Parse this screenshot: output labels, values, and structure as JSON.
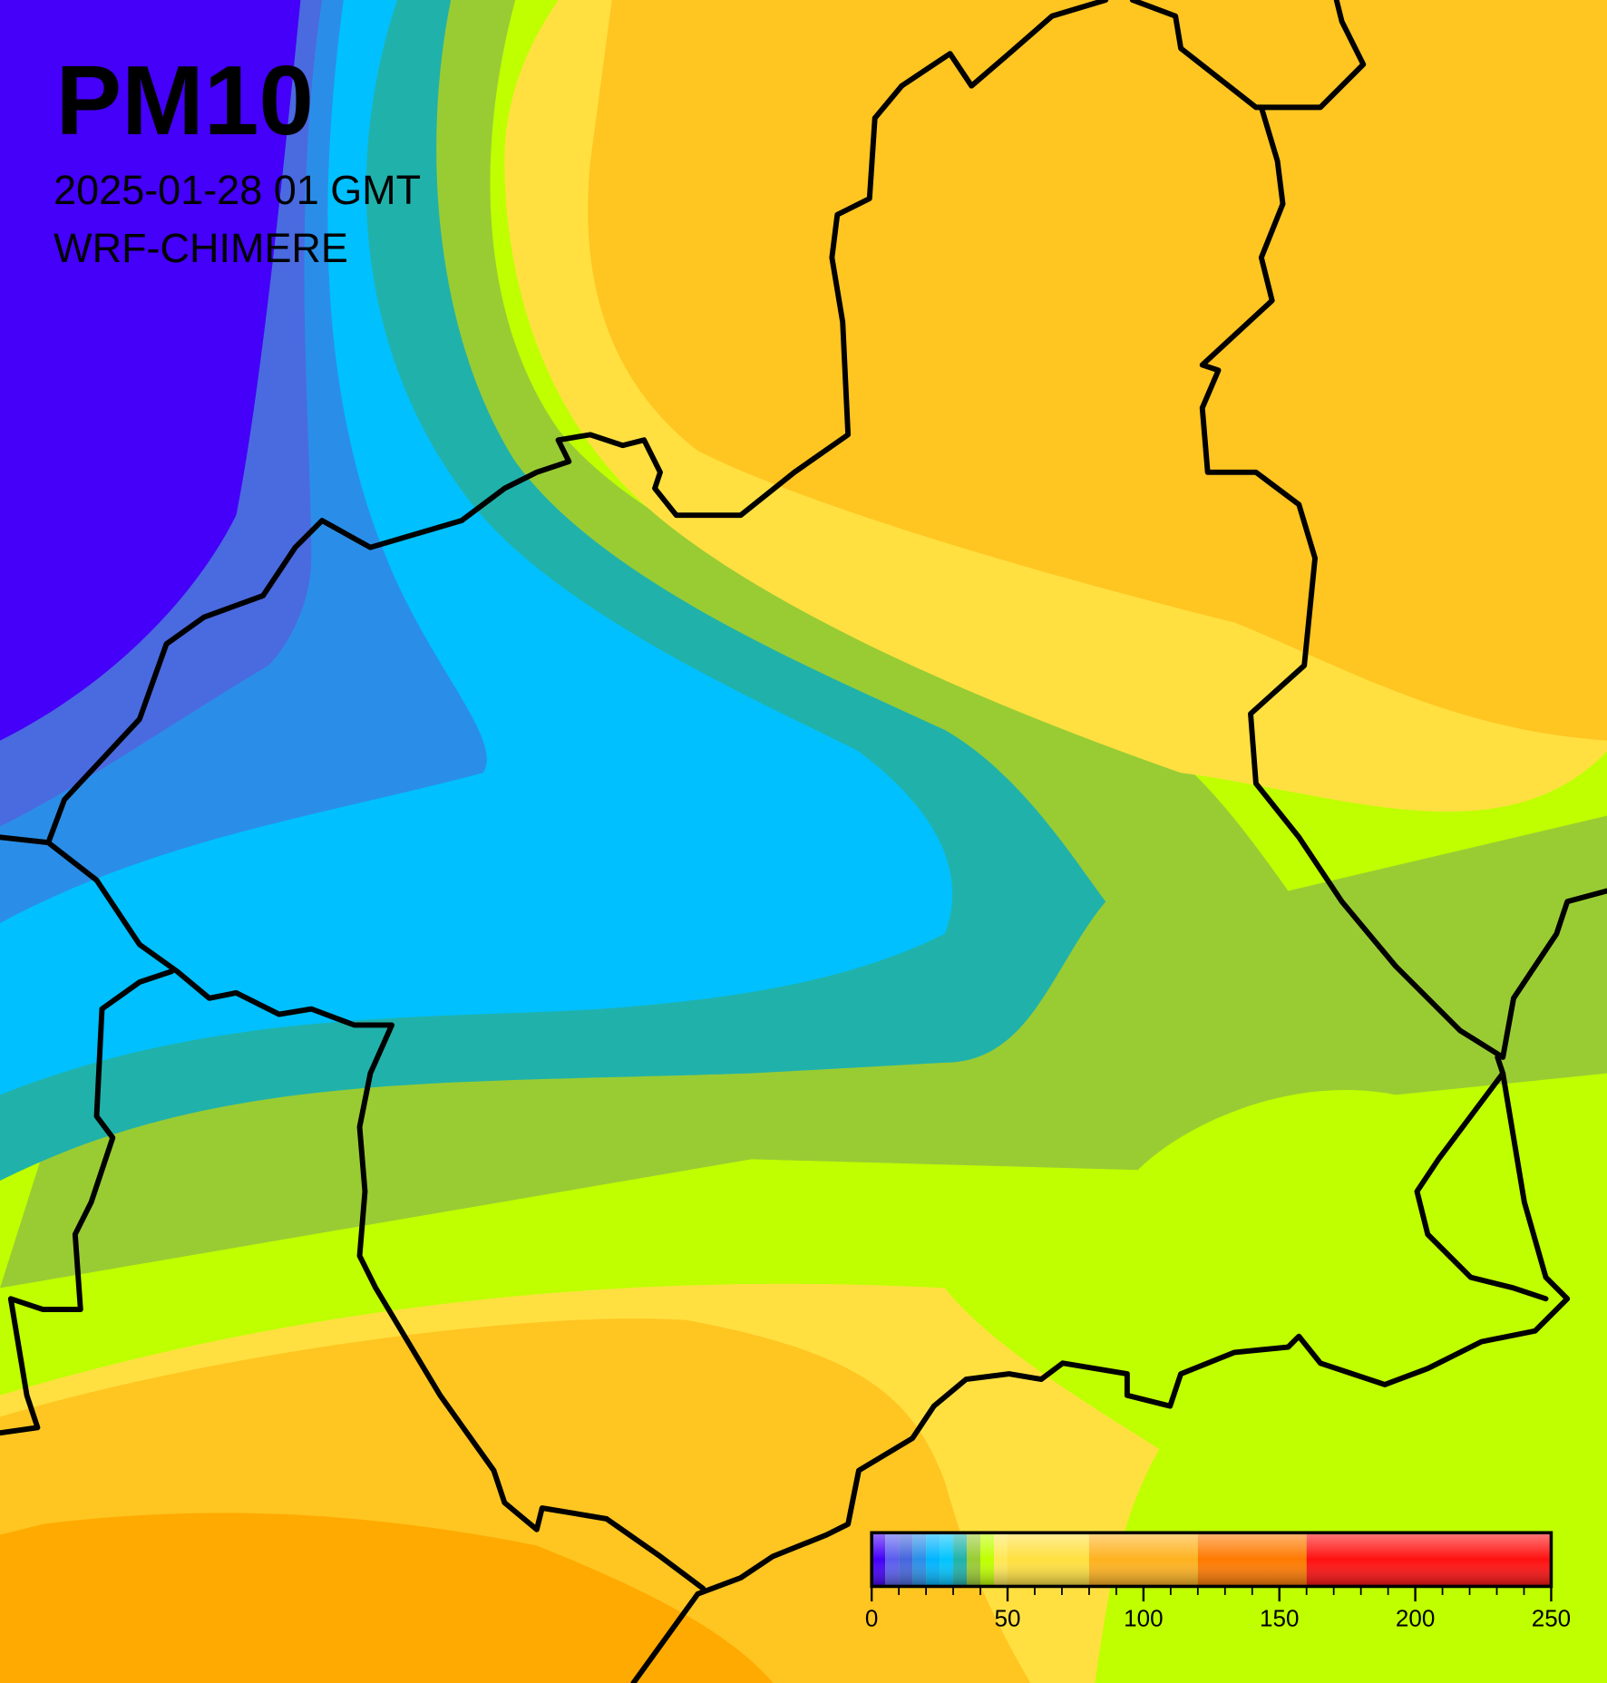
{
  "header": {
    "title": "PM10",
    "timestamp": "2025-01-28 01 GMT",
    "model": "WRF-CHIMERE"
  },
  "colorbar": {
    "range": [
      0,
      250
    ],
    "ticks": [
      0,
      50,
      100,
      150,
      200,
      250
    ],
    "minor_ticks": [
      10,
      20,
      30,
      40,
      60,
      70,
      80,
      90,
      110,
      120,
      130,
      140,
      160,
      170,
      180,
      190,
      210,
      220,
      230,
      240
    ],
    "bins": [
      0,
      5,
      10,
      15,
      20,
      25,
      30,
      35,
      40,
      45,
      50,
      80,
      120,
      160,
      250
    ],
    "colors": [
      "#4400f8",
      "#5a5cf0",
      "#4466dd",
      "#2a8ee8",
      "#00b4ff",
      "#00c4ff",
      "#20b2aa",
      "#99cc33",
      "#bfff00",
      "#ffe855",
      "#ffe040",
      "#ffb21f",
      "#ff7a00",
      "#ff1010"
    ]
  }
}
